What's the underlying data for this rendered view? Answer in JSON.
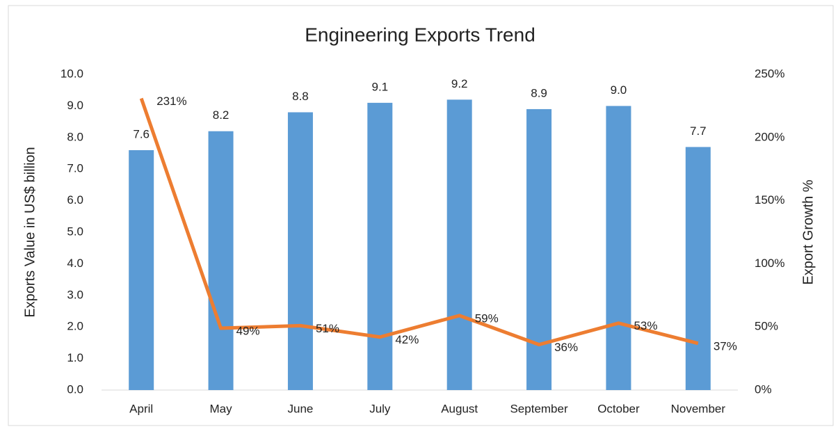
{
  "chart_data": {
    "type": "bar",
    "title": "Engineering Exports Trend",
    "y_label": "Exports Value in US$ billion",
    "y2_label": "Export Growth %",
    "categories": [
      "April",
      "May",
      "June",
      "July",
      "August",
      "September",
      "October",
      "November"
    ],
    "series": [
      {
        "color": "#5b9bd5",
        "values": [
          7.6,
          8.2,
          8.8,
          9.1,
          9.2,
          8.9,
          9.0,
          7.7
        ],
        "value_labels": [
          "7.6",
          "8.2",
          "8.8",
          "9.1",
          "9.2",
          "8.9",
          "9.0",
          "7.7"
        ]
      },
      {
        "type": "line",
        "axis": "y2",
        "color": "#ed7d31",
        "values": [
          231,
          49,
          51,
          42,
          59,
          36,
          53,
          37
        ],
        "value_labels": [
          "231%",
          "49%",
          "51%",
          "42%",
          "59%",
          "36%",
          "53%",
          "37%"
        ]
      }
    ],
    "ylim": [
      0,
      10
    ],
    "yticks": [
      {
        "value": 0,
        "label": "0.0"
      },
      {
        "value": 1,
        "label": "1.0"
      },
      {
        "value": 2,
        "label": "2.0"
      },
      {
        "value": 3,
        "label": "3.0"
      },
      {
        "value": 4,
        "label": "4.0"
      },
      {
        "value": 5,
        "label": "5.0"
      },
      {
        "value": 6,
        "label": "6.0"
      },
      {
        "value": 7,
        "label": "7.0"
      },
      {
        "value": 8,
        "label": "8.0"
      },
      {
        "value": 9,
        "label": "9.0"
      },
      {
        "value": 10,
        "label": "10.0"
      }
    ],
    "y2lim": [
      0,
      250
    ],
    "y2ticks": [
      {
        "value": 0,
        "label": "0%"
      },
      {
        "value": 50,
        "label": "50%"
      },
      {
        "value": 100,
        "label": "100%"
      },
      {
        "value": 150,
        "label": "150%"
      },
      {
        "value": 200,
        "label": "200%"
      },
      {
        "value": 250,
        "label": "250%"
      }
    ],
    "grid": false
  }
}
